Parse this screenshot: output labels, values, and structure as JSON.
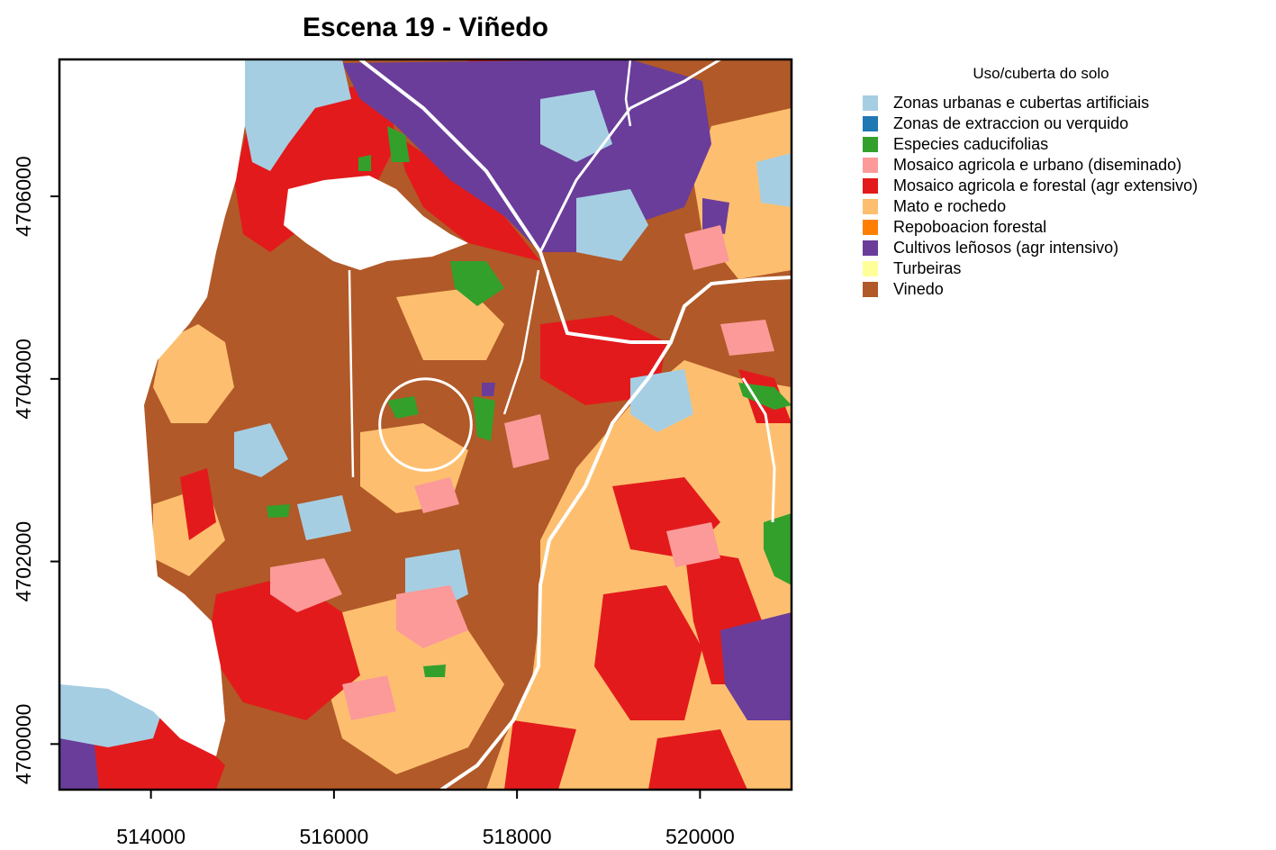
{
  "title": "Escena 19 - Viñedo",
  "axes": {
    "x_ticks": [
      "514000",
      "516000",
      "518000",
      "520000"
    ],
    "y_ticks": [
      "4700000",
      "4702000",
      "4704000",
      "4706000"
    ]
  },
  "map_extent": {
    "xmin": 513000,
    "xmax": 521000,
    "ymin": 4699500,
    "ymax": 4707500
  },
  "focus_circle": {
    "x": 517000,
    "y": 4703500,
    "radius": 500
  },
  "legend": {
    "title": "Uso/cuberta do solo",
    "items": [
      {
        "label": "Zonas urbanas e cubertas artificiais",
        "color": "#a6cee3"
      },
      {
        "label": "Zonas de extraccion ou verquido",
        "color": "#1f78b4"
      },
      {
        "label": "Especies caducifolias",
        "color": "#33a02c"
      },
      {
        "label": "Mosaico agricola e urbano (diseminado)",
        "color": "#fb9a99"
      },
      {
        "label": "Mosaico agricola e forestal (agr extensivo)",
        "color": "#e31a1c"
      },
      {
        "label": "Mato e rochedo",
        "color": "#fdbf6f"
      },
      {
        "label": "Repoboacion forestal",
        "color": "#ff7f00"
      },
      {
        "label": "Cultivos leñosos (agr intensivo)",
        "color": "#6a3d9a"
      },
      {
        "label": "Turbeiras",
        "color": "#ffff99"
      },
      {
        "label": "Vinedo",
        "color": "#b15928"
      }
    ]
  }
}
